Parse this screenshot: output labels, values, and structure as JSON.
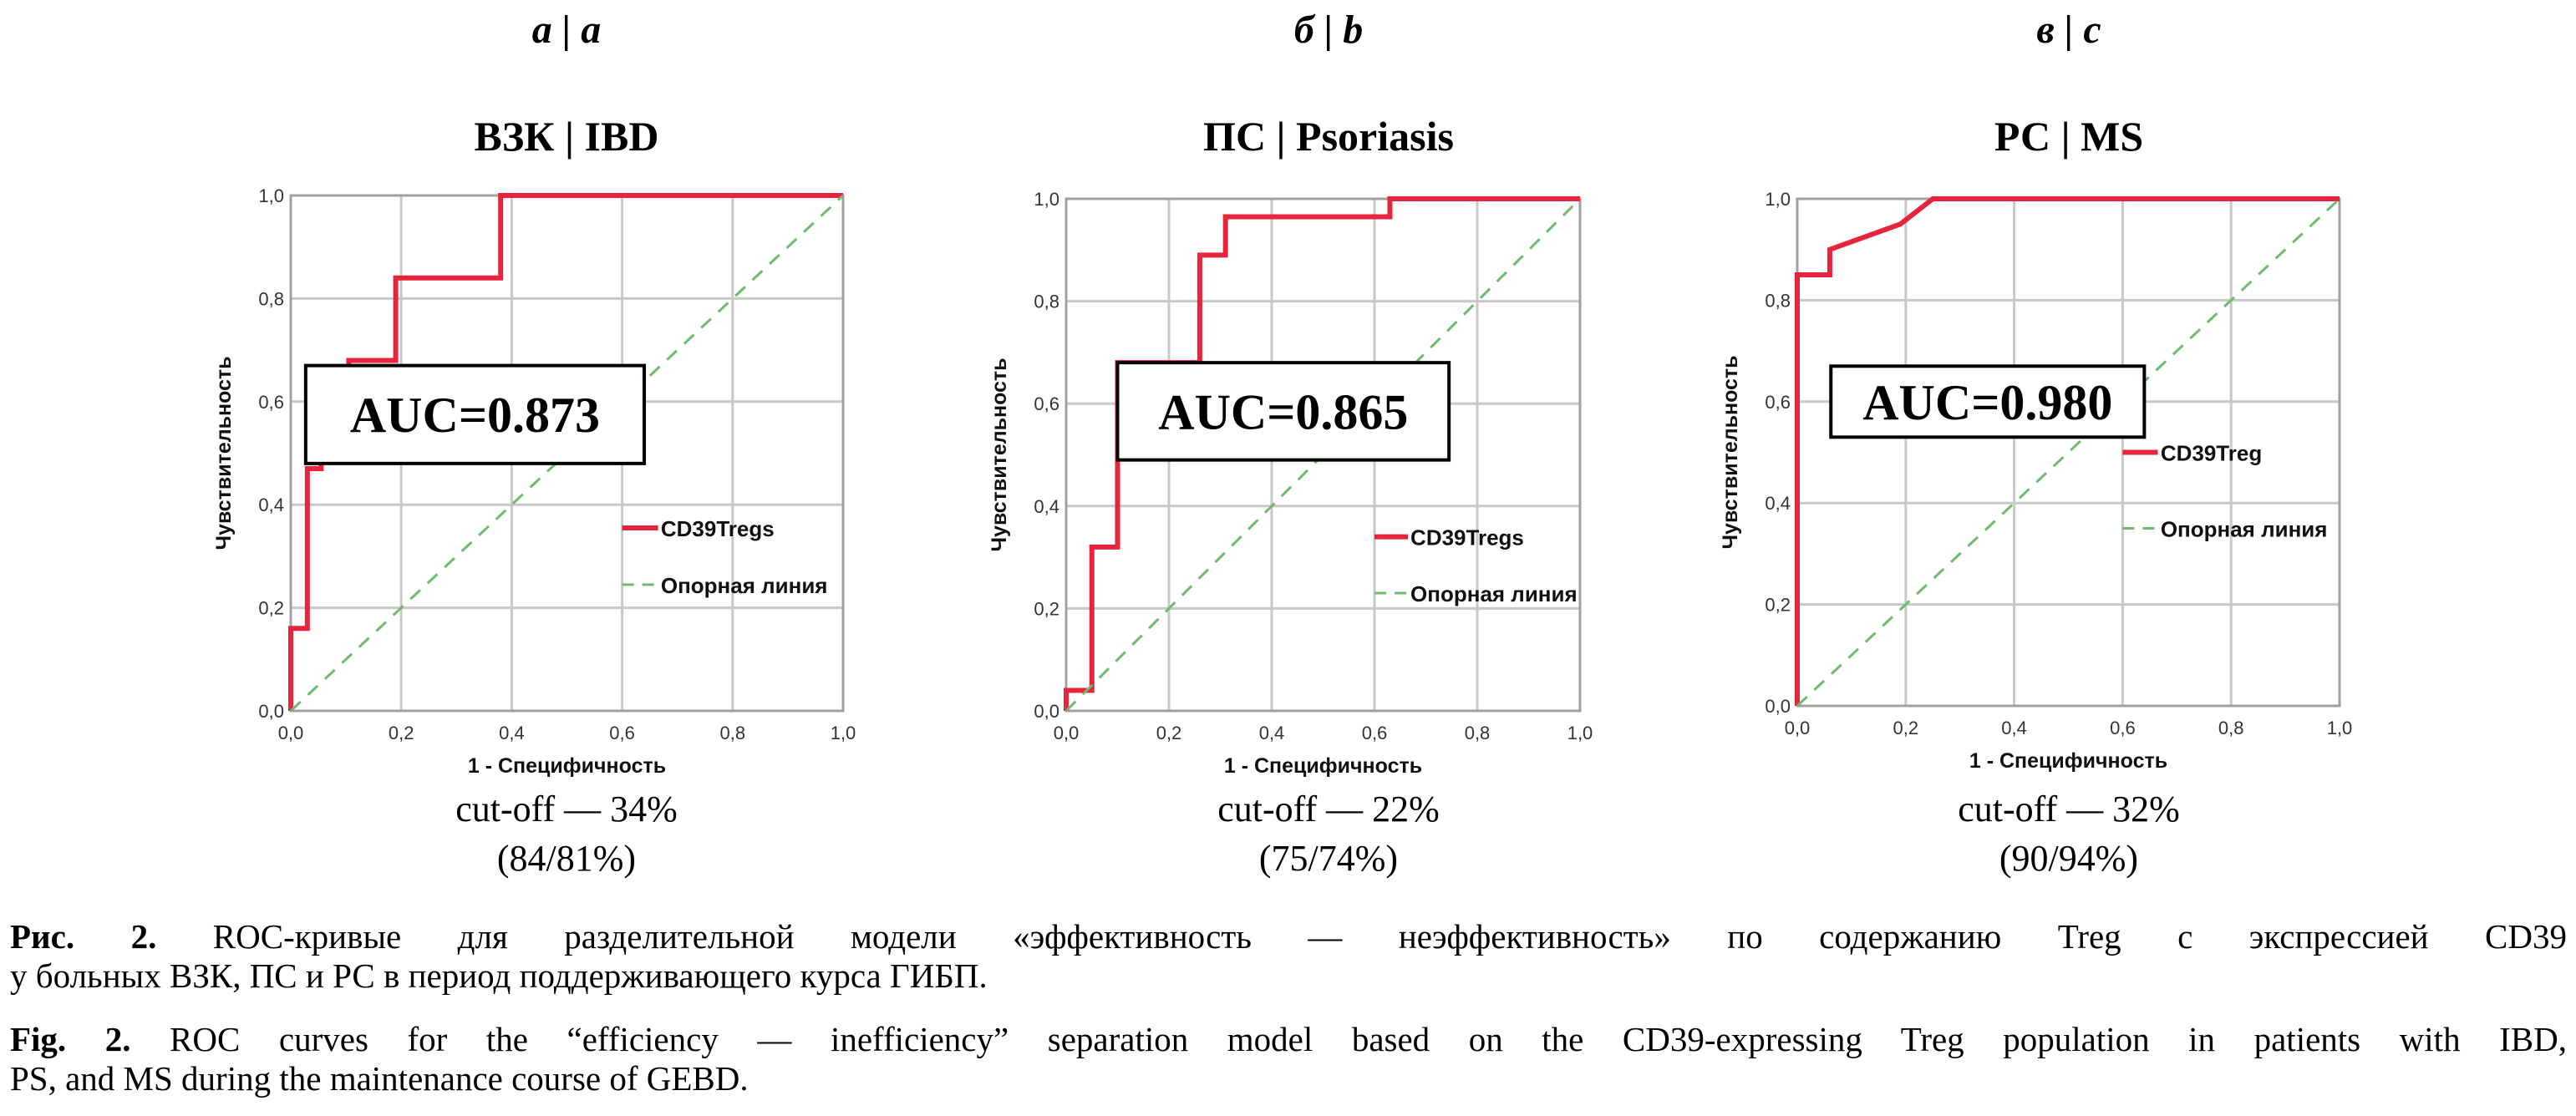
{
  "chart_data": [
    {
      "type": "line",
      "panel_letter": "а | a",
      "title": "ВЗК | IBD",
      "xlabel": "1 - Специфичность",
      "ylabel": "Чувствительность",
      "xlim": [
        0,
        1
      ],
      "ylim": [
        0,
        1
      ],
      "xticks": [
        "0,0",
        "0,2",
        "0,4",
        "0,6",
        "0,8",
        "1,0"
      ],
      "yticks": [
        "0,0",
        "0,2",
        "0,4",
        "0,6",
        "0,8",
        "1,0"
      ],
      "grid": true,
      "annotation": "AUC=0.873",
      "legend_position": "lower-right",
      "series": [
        {
          "name": "CD39Tregs",
          "color": "#e8243c",
          "style": "solid",
          "x": [
            0,
            0,
            0.03,
            0.03,
            0.055,
            0.055,
            0.08,
            0.08,
            0.105,
            0.105,
            0.19,
            0.19,
            0.38,
            0.38,
            1
          ],
          "y": [
            0,
            0.16,
            0.16,
            0.47,
            0.47,
            0.53,
            0.53,
            0.63,
            0.63,
            0.68,
            0.68,
            0.84,
            0.84,
            1,
            1
          ]
        },
        {
          "name": "Опорная линия",
          "color": "#6dbb6d",
          "style": "dashed",
          "x": [
            0,
            1
          ],
          "y": [
            0,
            1
          ]
        }
      ],
      "cutoff": "cut-off — 34%",
      "cutoff_values": "(84/81%)"
    },
    {
      "type": "line",
      "panel_letter": "б | b",
      "title": "ПС | Psoriasis",
      "xlabel": "1 - Специфичность",
      "ylabel": "Чувствительность",
      "xlim": [
        0,
        1
      ],
      "ylim": [
        0,
        1
      ],
      "xticks": [
        "0,0",
        "0,2",
        "0,4",
        "0,6",
        "0,8",
        "1,0"
      ],
      "yticks": [
        "0,0",
        "0,2",
        "0,4",
        "0,6",
        "0,8",
        "1,0"
      ],
      "grid": true,
      "annotation": "AUC=0.865",
      "legend_position": "lower-right",
      "series": [
        {
          "name": "CD39Tregs",
          "color": "#e8243c",
          "style": "solid",
          "x": [
            0,
            0,
            0.05,
            0.05,
            0.1,
            0.1,
            0.26,
            0.26,
            0.31,
            0.31,
            0.63,
            0.63,
            1
          ],
          "y": [
            0,
            0.04,
            0.04,
            0.32,
            0.32,
            0.68,
            0.68,
            0.89,
            0.89,
            0.965,
            0.965,
            1,
            1
          ]
        },
        {
          "name": "Опорная линия",
          "color": "#6dbb6d",
          "style": "dashed",
          "x": [
            0,
            1
          ],
          "y": [
            0,
            1
          ]
        }
      ],
      "cutoff": "cut-off — 22%",
      "cutoff_values": "(75/74%)"
    },
    {
      "type": "line",
      "panel_letter": "в | c",
      "title": "РС | MS",
      "xlabel": "1 - Специфичность",
      "ylabel": "Чувствительность",
      "xlim": [
        0,
        1
      ],
      "ylim": [
        0,
        1
      ],
      "xticks": [
        "0,0",
        "0,2",
        "0,4",
        "0,6",
        "0,8",
        "1,0"
      ],
      "yticks": [
        "0,0",
        "0,2",
        "0,4",
        "0,6",
        "0,8",
        "1,0"
      ],
      "grid": true,
      "annotation": "AUC=0.980",
      "legend_position": "right",
      "series": [
        {
          "name": "CD39Treg",
          "color": "#e8243c",
          "style": "solid",
          "x": [
            0,
            0,
            0.06,
            0.06,
            0.19,
            0.25,
            1
          ],
          "y": [
            0,
            0.85,
            0.85,
            0.9,
            0.95,
            1,
            1
          ]
        },
        {
          "name": "Опорная линия",
          "color": "#6dbb6d",
          "style": "dashed",
          "x": [
            0,
            1
          ],
          "y": [
            0,
            1
          ]
        }
      ],
      "cutoff": "cut-off — 32%",
      "cutoff_values": "(90/94%)"
    }
  ],
  "caption_ru": {
    "label": "Рис. 2.",
    "line1": " ROC-кривые для разделительной модели «эффективность — неэффективность» по содержанию Treg с экспрессией CD39",
    "line2": "у больных ВЗК, ПС и РС в период поддерживающего курса ГИБП."
  },
  "caption_en": {
    "label": "Fig. 2.",
    "line1": " ROC curves for the “efficiency — inefficiency” separation model based on the CD39-expressing Treg population in patients with IBD,",
    "line2": "PS, and MS during the maintenance course of GEBD."
  }
}
